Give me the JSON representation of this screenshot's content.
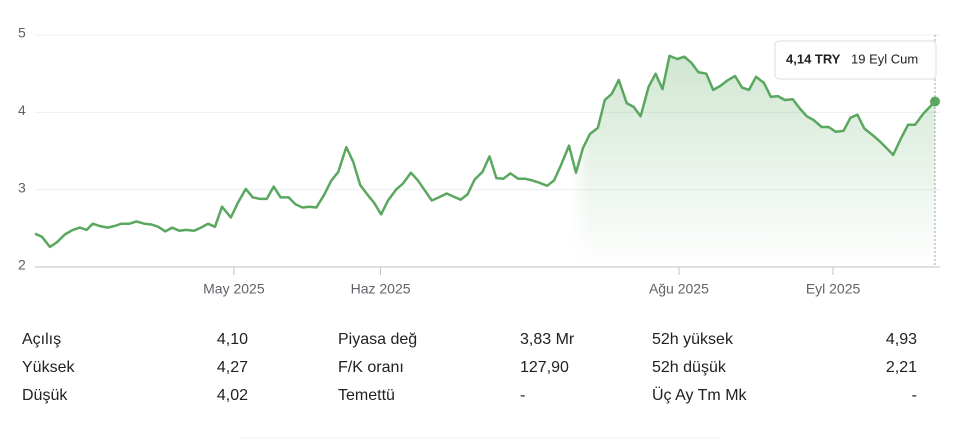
{
  "chart_data": {
    "type": "line",
    "color": "#5aa75f",
    "x": [
      -40,
      -38.6,
      -37,
      -35.6,
      -34,
      -32.4,
      -31,
      -29.6,
      -28.4,
      -27,
      -25.4,
      -24,
      -22.6,
      -21,
      -19.6,
      -18,
      -16.6,
      -15.2,
      -13.8,
      -12.4,
      -11,
      -9.6,
      -8,
      -6.6,
      -5.2,
      -3.8,
      -2.4,
      -0.6,
      0.8,
      2.4,
      3.8,
      5.2,
      6.6,
      8,
      9.4,
      11,
      12.4,
      13.8,
      15.2,
      16.6,
      18.2,
      19.6,
      21,
      22.6,
      24,
      25.4,
      26.8,
      28.2,
      29.6,
      31,
      32.6,
      34,
      35.6,
      37,
      38.4,
      39.8,
      41.2,
      42.8,
      44.2,
      45.6,
      47,
      48.4,
      50,
      51.4,
      52.8,
      54.2,
      55.6,
      57.2,
      58.6,
      60,
      61.4,
      63,
      64.4,
      65.8,
      67.4,
      68.8,
      70.2,
      71.6,
      73.2,
      74.6,
      76,
      77.4,
      79,
      80.4,
      81.8,
      83.4,
      84.8,
      86.2,
      87.6,
      89.2,
      90.6,
      92,
      93.4,
      95,
      96.4,
      97.8,
      99.2,
      100.8,
      102.2,
      103.6,
      105,
      106.6,
      108,
      109.4,
      110.8,
      112.4,
      113.8,
      115.2,
      116.6,
      118.2,
      119.6,
      121,
      122.6,
      124,
      125.4,
      126.8,
      128.4,
      129.8,
      131.2,
      132.6,
      134.2,
      135.6,
      137,
      138.6,
      141
    ],
    "values": [
      2.43,
      2.39,
      2.26,
      2.32,
      2.42,
      2.48,
      2.51,
      2.48,
      2.56,
      2.53,
      2.51,
      2.53,
      2.56,
      2.56,
      2.59,
      2.56,
      2.55,
      2.52,
      2.46,
      2.51,
      2.47,
      2.48,
      2.47,
      2.51,
      2.56,
      2.52,
      2.78,
      2.64,
      2.83,
      3.01,
      2.9,
      2.88,
      2.88,
      3.04,
      2.9,
      2.9,
      2.81,
      2.77,
      2.78,
      2.77,
      2.94,
      3.12,
      3.23,
      3.55,
      3.36,
      3.06,
      2.94,
      2.83,
      2.68,
      2.86,
      3.0,
      3.08,
      3.22,
      3.12,
      2.99,
      2.86,
      2.9,
      2.95,
      2.91,
      2.87,
      2.94,
      3.13,
      3.23,
      3.43,
      3.15,
      3.14,
      3.21,
      3.14,
      3.14,
      3.12,
      3.09,
      3.05,
      3.12,
      3.32,
      3.57,
      3.22,
      3.54,
      3.72,
      3.8,
      4.16,
      4.24,
      4.42,
      4.12,
      4.07,
      3.95,
      4.33,
      4.5,
      4.3,
      4.73,
      4.69,
      4.72,
      4.64,
      4.52,
      4.5,
      4.29,
      4.34,
      4.41,
      4.47,
      4.32,
      4.29,
      4.46,
      4.38,
      4.2,
      4.21,
      4.16,
      4.17,
      4.05,
      3.95,
      3.9,
      3.81,
      3.81,
      3.75,
      3.76,
      3.93,
      3.97,
      3.79,
      3.71,
      3.63,
      3.54,
      3.45,
      3.67,
      3.84,
      3.84,
      3.98,
      4.14
    ],
    "xlim": [
      -40,
      141
    ],
    "xticks": [
      {
        "value": 0,
        "label": "May 2025"
      },
      {
        "value": 29.5,
        "label": "Haz 2025"
      },
      {
        "value": 89.5,
        "label": "Ağu 2025"
      },
      {
        "value": 120.5,
        "label": "Eyl 2025"
      }
    ],
    "ylim": [
      2,
      5
    ],
    "yticks": [
      2,
      3,
      4,
      5
    ],
    "grid": true,
    "tooltip": {
      "price": "4,14 TRY",
      "date": "19 Eyl Cum"
    }
  },
  "stats": [
    [
      {
        "label": "Açılış",
        "value": "4,10"
      },
      {
        "label": "Piyasa değ",
        "value": "3,83 Mr"
      },
      {
        "label": "52h yüksek",
        "value": "4,93"
      }
    ],
    [
      {
        "label": "Yüksek",
        "value": "4,27"
      },
      {
        "label": "F/K oranı",
        "value": "127,90"
      },
      {
        "label": "52h düşük",
        "value": "2,21"
      }
    ],
    [
      {
        "label": "Düşük",
        "value": "4,02"
      },
      {
        "label": "Temettü",
        "value": "-"
      },
      {
        "label": "Üç Ay Tm Mk",
        "value": "-"
      }
    ]
  ]
}
